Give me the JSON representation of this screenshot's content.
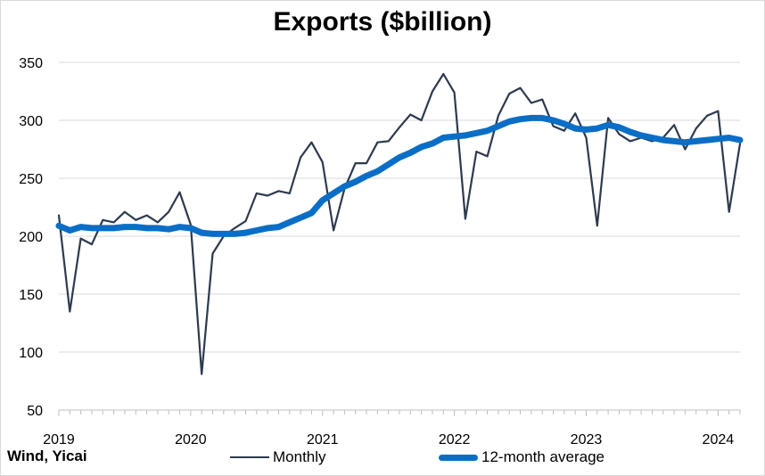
{
  "source": "Wind, Yicai",
  "colors": {
    "monthly": "#2e3a4e",
    "average": "#0a6ec6",
    "grid": "#d9d9d9"
  },
  "chart_data": {
    "type": "line",
    "title": "Exports ($billion)",
    "xlabel": "",
    "ylabel": "",
    "ylim": [
      50,
      350
    ],
    "yticks": [
      50,
      100,
      150,
      200,
      250,
      300,
      350
    ],
    "xticks": [
      "2019",
      "2020",
      "2021",
      "2022",
      "2023",
      "2024"
    ],
    "xrange": [
      "2019-01",
      "2024-03"
    ],
    "grid": true,
    "legend_position": "bottom",
    "x": [
      "2019-01",
      "2019-02",
      "2019-03",
      "2019-04",
      "2019-05",
      "2019-06",
      "2019-07",
      "2019-08",
      "2019-09",
      "2019-10",
      "2019-11",
      "2019-12",
      "2020-01",
      "2020-02",
      "2020-03",
      "2020-04",
      "2020-05",
      "2020-06",
      "2020-07",
      "2020-08",
      "2020-09",
      "2020-10",
      "2020-11",
      "2020-12",
      "2021-01",
      "2021-02",
      "2021-03",
      "2021-04",
      "2021-05",
      "2021-06",
      "2021-07",
      "2021-08",
      "2021-09",
      "2021-10",
      "2021-11",
      "2021-12",
      "2022-01",
      "2022-02",
      "2022-03",
      "2022-04",
      "2022-05",
      "2022-06",
      "2022-07",
      "2022-08",
      "2022-09",
      "2022-10",
      "2022-11",
      "2022-12",
      "2023-01",
      "2023-02",
      "2023-03",
      "2023-04",
      "2023-05",
      "2023-06",
      "2023-07",
      "2023-08",
      "2023-09",
      "2023-10",
      "2023-11",
      "2023-12",
      "2024-01",
      "2024-02",
      "2024-03"
    ],
    "series": [
      {
        "name": "Monthly",
        "values": [
          218,
          135,
          198,
          193,
          214,
          212,
          221,
          214,
          218,
          212,
          221,
          238,
          210,
          81,
          185,
          200,
          207,
          213,
          237,
          235,
          239,
          237,
          268,
          281,
          264,
          205,
          241,
          263,
          263,
          281,
          282,
          294,
          305,
          300,
          325,
          340,
          324,
          215,
          273,
          269,
          304,
          323,
          328,
          315,
          318,
          295,
          291,
          306,
          285,
          209,
          302,
          288,
          282,
          285,
          282,
          285,
          296,
          275,
          293,
          304,
          308,
          221,
          280
        ]
      },
      {
        "name": "12-month average",
        "values": [
          209,
          205,
          208,
          207,
          207,
          207,
          208,
          208,
          207,
          207,
          206,
          208,
          207,
          203,
          202,
          202,
          202,
          203,
          205,
          207,
          208,
          212,
          216,
          220,
          231,
          237,
          243,
          247,
          252,
          256,
          262,
          268,
          272,
          277,
          280,
          285,
          286,
          287,
          289,
          291,
          295,
          299,
          301,
          302,
          302,
          300,
          297,
          293,
          292,
          293,
          296,
          294,
          290,
          287,
          285,
          283,
          282,
          281,
          282,
          283,
          284,
          285,
          283
        ]
      }
    ]
  }
}
